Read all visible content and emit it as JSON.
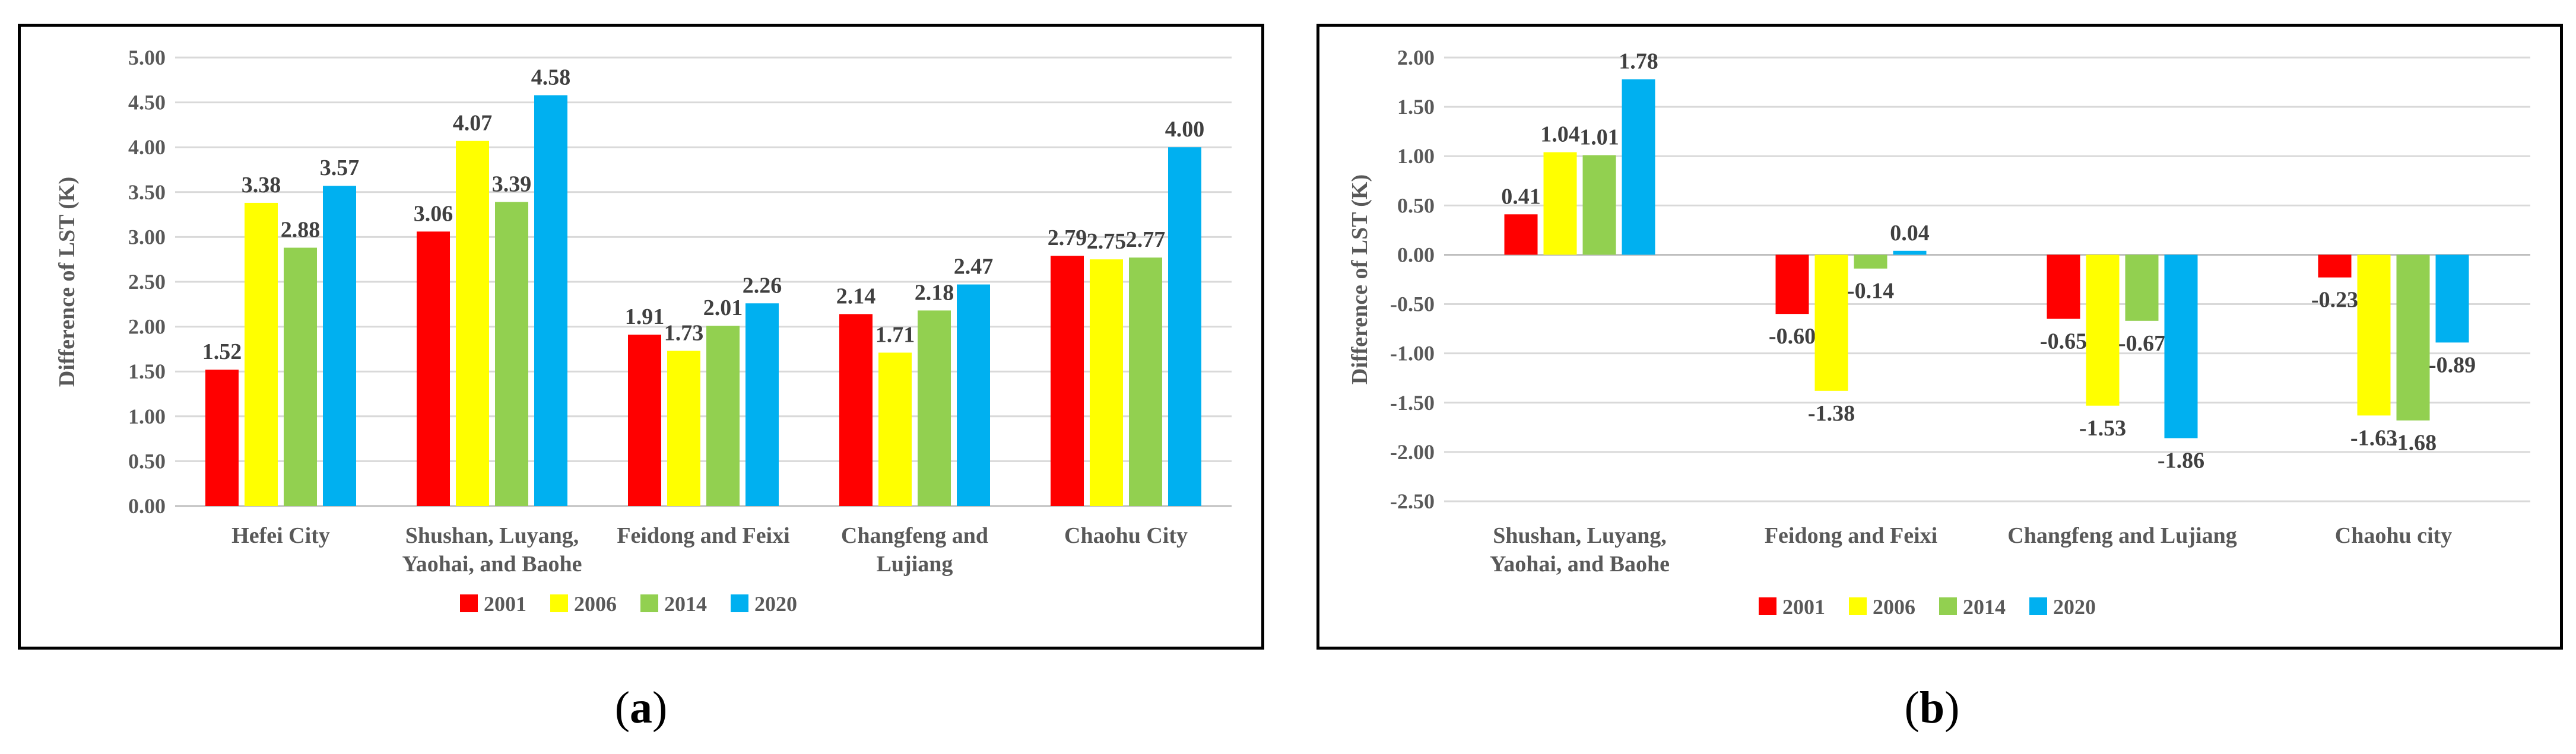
{
  "figure": {
    "caption_a": "a",
    "caption_b": "b"
  },
  "chart_data": [
    {
      "panel": "a",
      "type": "bar",
      "title": "",
      "xlabel": "",
      "ylabel": "Difference of LST (K)",
      "ylim": [
        0,
        5
      ],
      "ytick_step": 0.5,
      "yticks": [
        "0.00",
        "0.50",
        "1.00",
        "1.50",
        "2.00",
        "2.50",
        "3.00",
        "3.50",
        "4.00",
        "4.50",
        "5.00"
      ],
      "grid": "horizontal",
      "legend_position": "bottom",
      "categories": [
        [
          "Hefei City"
        ],
        [
          "Shushan, Luyang,",
          "Yaohai, and Baohe"
        ],
        [
          "Feidong and Feixi"
        ],
        [
          "Changfeng and",
          "Lujiang"
        ],
        [
          "Chaohu City"
        ]
      ],
      "series": [
        {
          "name": "2001",
          "color": "#ff0000",
          "values": [
            1.52,
            3.06,
            1.91,
            2.14,
            2.79
          ]
        },
        {
          "name": "2006",
          "color": "#ffff00",
          "values": [
            3.38,
            4.07,
            1.73,
            1.71,
            2.75
          ]
        },
        {
          "name": "2014",
          "color": "#92d050",
          "values": [
            2.88,
            3.39,
            2.01,
            2.18,
            2.77
          ]
        },
        {
          "name": "2020",
          "color": "#00b0f0",
          "values": [
            3.57,
            4.58,
            2.26,
            2.47,
            4.0
          ]
        }
      ]
    },
    {
      "panel": "b",
      "type": "bar",
      "title": "",
      "xlabel": "",
      "ylabel": "Difference of LST (K)",
      "ylim": [
        -2.5,
        2
      ],
      "ytick_step": 0.5,
      "yticks": [
        "-2.50",
        "-2.00",
        "-1.50",
        "-1.00",
        "-0.50",
        "0.00",
        "0.50",
        "1.00",
        "1.50",
        "2.00"
      ],
      "grid": "horizontal",
      "legend_position": "bottom",
      "categories": [
        [
          "Shushan, Luyang,",
          "Yaohai, and Baohe"
        ],
        [
          "Feidong and Feixi"
        ],
        [
          "Changfeng and Lujiang"
        ],
        [
          "Chaohu city"
        ]
      ],
      "series": [
        {
          "name": "2001",
          "color": "#ff0000",
          "values": [
            0.41,
            -0.6,
            -0.65,
            -0.23
          ]
        },
        {
          "name": "2006",
          "color": "#ffff00",
          "values": [
            1.04,
            -1.38,
            -1.53,
            -1.63
          ]
        },
        {
          "name": "2014",
          "color": "#92d050",
          "values": [
            1.01,
            -0.14,
            -0.67,
            -1.68
          ]
        },
        {
          "name": "2020",
          "color": "#00b0f0",
          "values": [
            1.78,
            0.04,
            -1.86,
            -0.89
          ]
        }
      ]
    }
  ]
}
